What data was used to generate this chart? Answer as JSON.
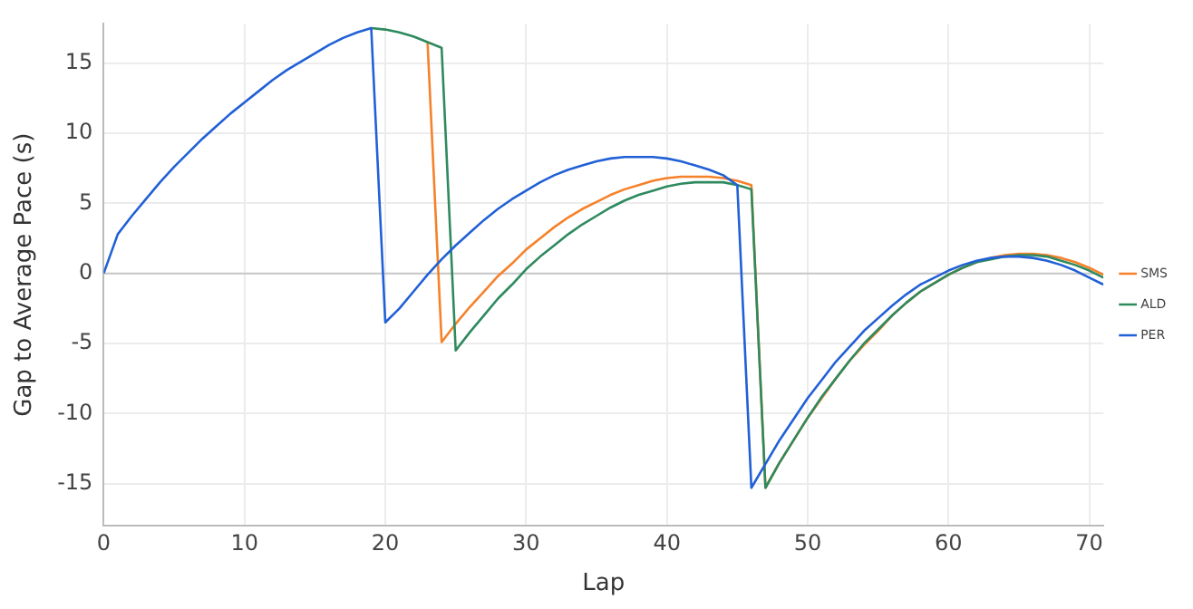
{
  "chart_data": {
    "type": "line",
    "xlabel": "Lap",
    "ylabel": "Gap to Average Pace (s)",
    "x": [
      0,
      1,
      2,
      3,
      4,
      5,
      6,
      7,
      8,
      9,
      10,
      11,
      12,
      13,
      14,
      15,
      16,
      17,
      18,
      19,
      20,
      21,
      22,
      23,
      24,
      25,
      26,
      27,
      28,
      29,
      30,
      31,
      32,
      33,
      34,
      35,
      36,
      37,
      38,
      39,
      40,
      41,
      42,
      43,
      44,
      45,
      46,
      47,
      48,
      49,
      50,
      51,
      52,
      53,
      54,
      55,
      56,
      57,
      58,
      59,
      60,
      61,
      62,
      63,
      64,
      65,
      66,
      67,
      68,
      69,
      70,
      71
    ],
    "series": [
      {
        "name": "SMS",
        "color": "#f5812a",
        "values": [
          null,
          null,
          null,
          null,
          null,
          null,
          null,
          null,
          null,
          null,
          null,
          null,
          null,
          null,
          null,
          null,
          null,
          null,
          null,
          null,
          null,
          null,
          null,
          16.5,
          -4.9,
          -3.6,
          -2.4,
          -1.3,
          -0.2,
          0.7,
          1.7,
          2.5,
          3.3,
          4.0,
          4.6,
          5.1,
          5.6,
          6.0,
          6.3,
          6.6,
          6.8,
          6.9,
          6.9,
          6.9,
          6.8,
          6.6,
          6.3,
          -15.3,
          -13.5,
          -11.9,
          -10.3,
          -8.9,
          -7.5,
          -6.2,
          -5.1,
          -4.1,
          -3.0,
          -2.1,
          -1.3,
          -0.7,
          -0.1,
          0.4,
          0.8,
          1.1,
          1.3,
          1.4,
          1.4,
          1.3,
          1.1,
          0.8,
          0.4,
          -0.1
        ]
      },
      {
        "name": "ALD",
        "color": "#2e8a5e",
        "values": [
          null,
          null,
          null,
          null,
          null,
          null,
          null,
          null,
          null,
          null,
          null,
          null,
          null,
          null,
          null,
          null,
          null,
          null,
          null,
          17.5,
          17.4,
          17.2,
          16.9,
          16.5,
          16.1,
          -5.5,
          -4.2,
          -3.0,
          -1.8,
          -0.8,
          0.3,
          1.2,
          2.0,
          2.8,
          3.5,
          4.1,
          4.7,
          5.2,
          5.6,
          5.9,
          6.2,
          6.4,
          6.5,
          6.5,
          6.5,
          6.3,
          6.0,
          -15.3,
          -13.5,
          -11.9,
          -10.3,
          -8.8,
          -7.5,
          -6.2,
          -5.0,
          -4.0,
          -3.0,
          -2.1,
          -1.3,
          -0.7,
          -0.1,
          0.4,
          0.8,
          1.0,
          1.2,
          1.3,
          1.3,
          1.2,
          0.9,
          0.6,
          0.2,
          -0.3
        ]
      },
      {
        "name": "PER",
        "color": "#2160d6",
        "values": [
          0,
          2.8,
          4.1,
          5.3,
          6.5,
          7.6,
          8.6,
          9.6,
          10.5,
          11.4,
          12.2,
          13.0,
          13.8,
          14.5,
          15.1,
          15.7,
          16.3,
          16.8,
          17.2,
          17.5,
          -3.5,
          -2.5,
          -1.3,
          -0.1,
          1.0,
          2.0,
          2.9,
          3.8,
          4.6,
          5.3,
          5.9,
          6.5,
          7.0,
          7.4,
          7.7,
          8.0,
          8.2,
          8.3,
          8.3,
          8.3,
          8.2,
          8.0,
          7.7,
          7.4,
          7.0,
          6.3,
          -15.3,
          -13.6,
          -11.9,
          -10.4,
          -8.9,
          -7.6,
          -6.3,
          -5.2,
          -4.1,
          -3.2,
          -2.3,
          -1.5,
          -0.8,
          -0.3,
          0.2,
          0.6,
          0.9,
          1.1,
          1.2,
          1.2,
          1.1,
          0.9,
          0.6,
          0.2,
          -0.3,
          -0.8
        ]
      }
    ],
    "xlim": [
      0,
      71
    ],
    "xticks": [
      0,
      10,
      20,
      30,
      40,
      50,
      60,
      70
    ],
    "ylim": [
      -18,
      17.8
    ],
    "yticks": [
      -15,
      -10,
      -5,
      0,
      5,
      10,
      15
    ],
    "ref_lines": [
      {
        "axis": "y",
        "value": 0,
        "color": "#c8c8c8"
      }
    ],
    "grid": true,
    "legend": "right",
    "marker": "none",
    "line_style": "solid"
  }
}
